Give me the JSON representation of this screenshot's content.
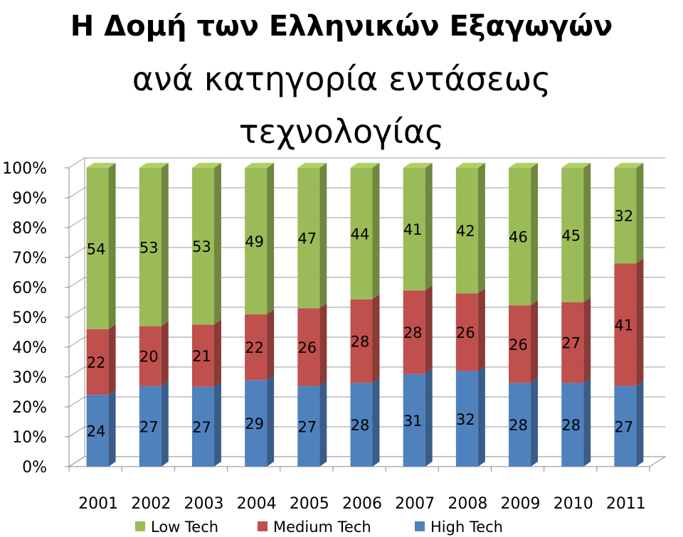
{
  "chart_data": {
    "type": "bar",
    "stacked": "percent",
    "title_lines": [
      "Η Δομή των Ελληνικών Εξαγωγών",
      "ανά κατηγορία εντάσεως",
      "τεχνολογίας"
    ],
    "categories": [
      "2001",
      "2002",
      "2003",
      "2004",
      "2005",
      "2006",
      "2007",
      "2008",
      "2009",
      "2010",
      "2011"
    ],
    "series": [
      {
        "name": "High Tech",
        "color": "#4f81bd",
        "values": [
          24,
          27,
          27,
          29,
          27,
          28,
          31,
          32,
          28,
          28,
          27
        ]
      },
      {
        "name": "Medium Tech",
        "color": "#c0504d",
        "values": [
          22,
          20,
          21,
          22,
          26,
          28,
          28,
          26,
          26,
          27,
          41
        ]
      },
      {
        "name": "Low Tech",
        "color": "#9bbb59",
        "values": [
          54,
          53,
          53,
          49,
          47,
          44,
          41,
          42,
          46,
          45,
          32
        ]
      }
    ],
    "legend_order": [
      "Low Tech",
      "Medium Tech",
      "High Tech"
    ],
    "legend_position": "bottom",
    "ylim": [
      0,
      100
    ],
    "y_ticks": [
      "0%",
      "10%",
      "20%",
      "30%",
      "40%",
      "50%",
      "60%",
      "70%",
      "80%",
      "90%",
      "100%"
    ],
    "grid": true,
    "effect": "3d"
  }
}
